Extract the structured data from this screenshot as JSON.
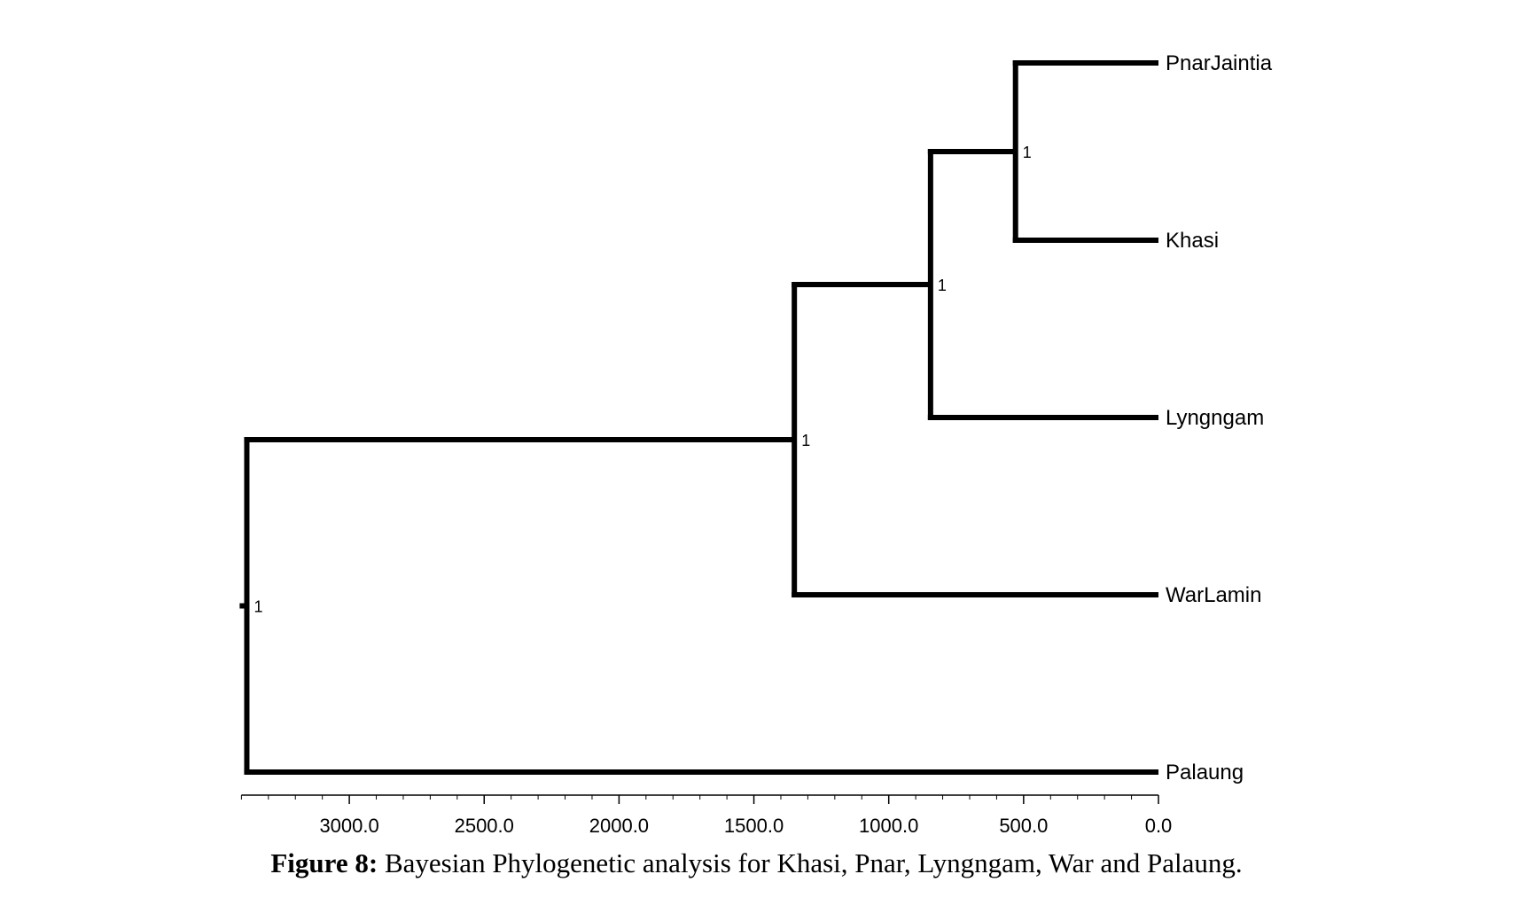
{
  "figure": {
    "caption_label": "Figure 8:",
    "caption_text": " Bayesian Phylogenetic analysis for Khasi, Pnar, Lyngngam, War and Palaung."
  },
  "chart_data": {
    "type": "tree",
    "root_age": 3400,
    "taxa": [
      "PnarJaintia",
      "Khasi",
      "Lyngngam",
      "WarLamin",
      "Palaung"
    ],
    "nodes": [
      {
        "id": "n_pk",
        "age": 530,
        "children": [
          "PnarJaintia",
          "Khasi"
        ],
        "support": "1"
      },
      {
        "id": "n_pkl",
        "age": 845,
        "children": [
          "n_pk",
          "Lyngngam"
        ],
        "support": "1"
      },
      {
        "id": "n_pklw",
        "age": 1350,
        "children": [
          "n_pkl",
          "WarLamin"
        ],
        "support": "1"
      },
      {
        "id": "root",
        "age": 3380,
        "children": [
          "n_pklw",
          "Palaung"
        ],
        "support": "1"
      }
    ],
    "axis": {
      "range": [
        3400,
        0
      ],
      "major_ticks": [
        3000,
        2500,
        2000,
        1500,
        1000,
        500,
        0
      ],
      "tick_labels": [
        "3000.0",
        "2500.0",
        "2000.0",
        "1500.0",
        "1000.0",
        "500.0",
        "0.0"
      ],
      "minor_step": 100
    }
  }
}
